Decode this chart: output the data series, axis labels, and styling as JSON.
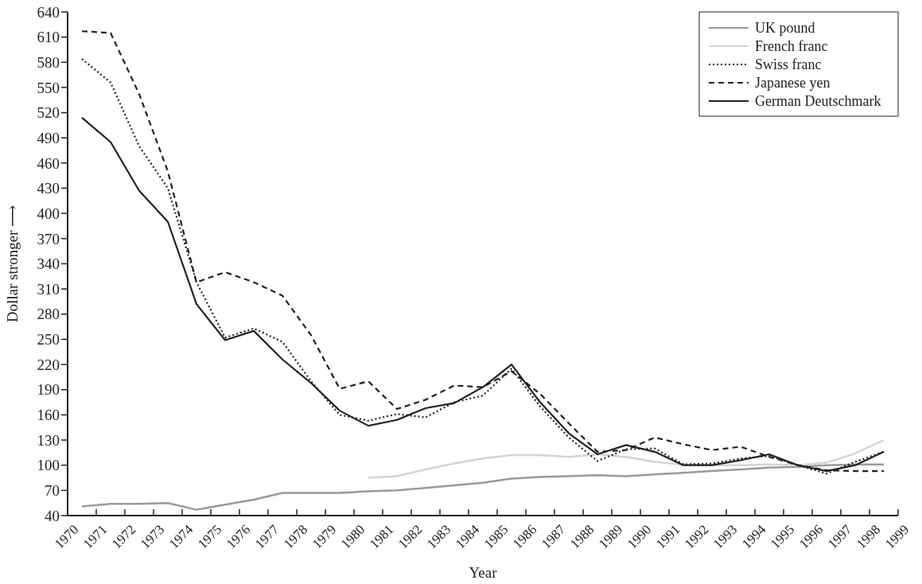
{
  "chart_data": {
    "type": "line",
    "xlabel": "Year",
    "ylabel": "Dollar stronger ⟶",
    "x": [
      1970.5,
      1971.5,
      1972.5,
      1973.5,
      1974.5,
      1975.5,
      1976.5,
      1977.5,
      1978.5,
      1979.5,
      1980.5,
      1981.5,
      1982.5,
      1983.5,
      1984.5,
      1985.5,
      1986.5,
      1987.5,
      1988.5,
      1989.5,
      1990.5,
      1991.5,
      1992.5,
      1993.5,
      1994.5,
      1995.5,
      1996.5,
      1997.5,
      1998.5
    ],
    "xlim": [
      1970,
      1999
    ],
    "xticks": [
      1970,
      1971,
      1972,
      1973,
      1974,
      1975,
      1976,
      1977,
      1978,
      1979,
      1980,
      1981,
      1982,
      1983,
      1984,
      1985,
      1986,
      1987,
      1988,
      1989,
      1990,
      1991,
      1992,
      1993,
      1994,
      1995,
      1996,
      1997,
      1998,
      1999
    ],
    "ylim": [
      40,
      640
    ],
    "yticks": [
      40,
      70,
      100,
      130,
      160,
      190,
      220,
      250,
      280,
      310,
      340,
      370,
      400,
      430,
      460,
      490,
      520,
      550,
      580,
      610,
      640
    ],
    "legend": "top right",
    "grid": false,
    "series": [
      {
        "name": "UK pound",
        "color": "#9a9a9a",
        "line_style": "solid",
        "values": [
          51,
          54,
          54,
          55,
          47,
          53,
          59,
          67,
          67,
          67,
          69,
          70,
          73,
          76,
          79,
          84,
          86,
          87,
          88,
          87,
          89,
          91,
          93,
          95,
          97,
          98,
          100,
          101,
          101
        ]
      },
      {
        "name": "French franc",
        "color": "#d4d4d4",
        "line_style": "solid",
        "values": [
          null,
          null,
          null,
          null,
          null,
          null,
          null,
          null,
          null,
          null,
          85,
          87,
          95,
          102,
          108,
          112,
          112,
          110,
          113,
          110,
          104,
          101,
          100,
          100,
          101,
          100,
          103,
          114,
          130
        ]
      },
      {
        "name": "Swiss franc",
        "color": "#222222",
        "line_style": "dotted",
        "values": [
          584,
          556,
          480,
          430,
          318,
          252,
          263,
          247,
          200,
          160,
          153,
          161,
          157,
          175,
          183,
          215,
          170,
          133,
          105,
          119,
          120,
          101,
          102,
          108,
          111,
          100,
          90,
          104,
          116
        ]
      },
      {
        "name": "Japanese yen",
        "color": "#222222",
        "line_style": "dashed",
        "values": [
          617,
          615,
          542,
          450,
          318,
          330,
          318,
          302,
          255,
          191,
          200,
          167,
          178,
          195,
          193,
          212,
          185,
          150,
          116,
          118,
          133,
          125,
          118,
          122,
          110,
          100,
          94,
          93,
          93
        ]
      },
      {
        "name": "German Deutschmark",
        "color": "#222222",
        "line_style": "solid",
        "values": [
          514,
          485,
          427,
          390,
          292,
          249,
          260,
          226,
          198,
          165,
          147,
          154,
          168,
          174,
          193,
          220,
          175,
          138,
          113,
          124,
          116,
          100,
          100,
          106,
          113,
          100,
          93,
          100,
          116
        ]
      }
    ]
  }
}
